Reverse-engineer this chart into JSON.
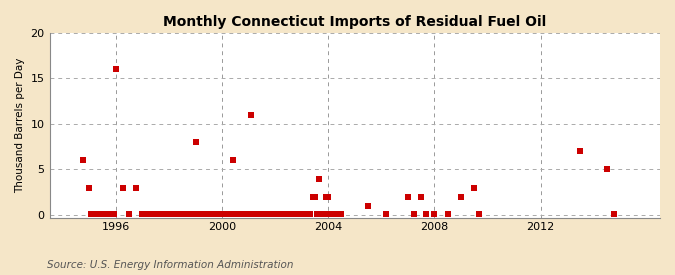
{
  "title": "Monthly Connecticut Imports of Residual Fuel Oil",
  "ylabel": "Thousand Barrels per Day",
  "source": "Source: U.S. Energy Information Administration",
  "background_color": "#f5e6c8",
  "plot_background_color": "#ffffff",
  "point_color": "#cc0000",
  "marker_size": 16,
  "ylim": [
    -0.3,
    20
  ],
  "yticks": [
    0,
    5,
    10,
    15,
    20
  ],
  "xlim": [
    1993.5,
    2016.5
  ],
  "xticks": [
    1996,
    2000,
    2004,
    2008,
    2012
  ],
  "grid_color": "#aaaaaa",
  "vgrid_color": "#999999",
  "data_points": [
    [
      1994.75,
      6.0
    ],
    [
      1995.0,
      3.0
    ],
    [
      1995.08,
      0.05
    ],
    [
      1995.17,
      0.05
    ],
    [
      1995.25,
      0.05
    ],
    [
      1995.33,
      0.05
    ],
    [
      1995.42,
      0.05
    ],
    [
      1995.5,
      0.05
    ],
    [
      1995.58,
      0.05
    ],
    [
      1995.67,
      0.05
    ],
    [
      1995.75,
      0.05
    ],
    [
      1995.83,
      0.05
    ],
    [
      1995.92,
      0.05
    ],
    [
      1996.0,
      16.0
    ],
    [
      1996.25,
      3.0
    ],
    [
      1996.5,
      0.05
    ],
    [
      1996.75,
      3.0
    ],
    [
      1997.0,
      0.05
    ],
    [
      1997.08,
      0.05
    ],
    [
      1997.17,
      0.05
    ],
    [
      1997.25,
      0.05
    ],
    [
      1997.33,
      0.05
    ],
    [
      1997.42,
      0.05
    ],
    [
      1997.5,
      0.05
    ],
    [
      1997.58,
      0.05
    ],
    [
      1997.67,
      0.05
    ],
    [
      1997.75,
      0.05
    ],
    [
      1997.83,
      0.05
    ],
    [
      1997.92,
      0.05
    ],
    [
      1998.0,
      0.05
    ],
    [
      1998.08,
      0.05
    ],
    [
      1998.17,
      0.05
    ],
    [
      1998.25,
      0.05
    ],
    [
      1998.33,
      0.05
    ],
    [
      1998.42,
      0.05
    ],
    [
      1998.5,
      0.05
    ],
    [
      1998.58,
      0.05
    ],
    [
      1998.67,
      0.05
    ],
    [
      1998.75,
      0.05
    ],
    [
      1998.83,
      0.05
    ],
    [
      1998.92,
      0.05
    ],
    [
      1999.0,
      8.0
    ],
    [
      1999.08,
      0.05
    ],
    [
      1999.17,
      0.05
    ],
    [
      1999.25,
      0.05
    ],
    [
      1999.33,
      0.05
    ],
    [
      1999.42,
      0.05
    ],
    [
      1999.5,
      0.05
    ],
    [
      1999.58,
      0.05
    ],
    [
      1999.67,
      0.05
    ],
    [
      1999.75,
      0.05
    ],
    [
      1999.83,
      0.05
    ],
    [
      1999.92,
      0.05
    ],
    [
      2000.0,
      0.05
    ],
    [
      2000.08,
      0.05
    ],
    [
      2000.17,
      0.05
    ],
    [
      2000.25,
      0.05
    ],
    [
      2000.33,
      0.05
    ],
    [
      2000.42,
      6.0
    ],
    [
      2000.5,
      0.05
    ],
    [
      2000.58,
      0.05
    ],
    [
      2000.67,
      0.05
    ],
    [
      2000.75,
      0.05
    ],
    [
      2000.83,
      0.05
    ],
    [
      2000.92,
      0.05
    ],
    [
      2001.0,
      0.05
    ],
    [
      2001.08,
      11.0
    ],
    [
      2001.17,
      0.05
    ],
    [
      2001.25,
      0.05
    ],
    [
      2001.33,
      0.05
    ],
    [
      2001.42,
      0.05
    ],
    [
      2001.5,
      0.05
    ],
    [
      2001.58,
      0.05
    ],
    [
      2001.67,
      0.05
    ],
    [
      2001.75,
      0.05
    ],
    [
      2001.83,
      0.05
    ],
    [
      2001.92,
      0.05
    ],
    [
      2002.0,
      0.05
    ],
    [
      2002.08,
      0.05
    ],
    [
      2002.17,
      0.05
    ],
    [
      2002.25,
      0.05
    ],
    [
      2002.33,
      0.05
    ],
    [
      2002.42,
      0.05
    ],
    [
      2002.5,
      0.05
    ],
    [
      2002.58,
      0.05
    ],
    [
      2002.67,
      0.05
    ],
    [
      2002.75,
      0.05
    ],
    [
      2002.83,
      0.05
    ],
    [
      2002.92,
      0.05
    ],
    [
      2003.0,
      0.05
    ],
    [
      2003.08,
      0.05
    ],
    [
      2003.17,
      0.05
    ],
    [
      2003.25,
      0.05
    ],
    [
      2003.33,
      0.05
    ],
    [
      2003.42,
      2.0
    ],
    [
      2003.5,
      2.0
    ],
    [
      2003.58,
      0.05
    ],
    [
      2003.67,
      4.0
    ],
    [
      2003.75,
      0.05
    ],
    [
      2003.83,
      0.05
    ],
    [
      2003.92,
      2.0
    ],
    [
      2004.0,
      2.0
    ],
    [
      2004.08,
      0.05
    ],
    [
      2004.17,
      0.05
    ],
    [
      2004.25,
      0.05
    ],
    [
      2004.33,
      0.05
    ],
    [
      2004.42,
      0.05
    ],
    [
      2004.5,
      0.05
    ],
    [
      2005.5,
      1.0
    ],
    [
      2006.17,
      0.05
    ],
    [
      2007.0,
      2.0
    ],
    [
      2007.25,
      0.05
    ],
    [
      2007.5,
      2.0
    ],
    [
      2007.67,
      0.05
    ],
    [
      2008.0,
      0.05
    ],
    [
      2008.5,
      0.05
    ],
    [
      2009.0,
      2.0
    ],
    [
      2009.5,
      3.0
    ],
    [
      2009.67,
      0.05
    ],
    [
      2013.5,
      7.0
    ],
    [
      2014.5,
      5.0
    ],
    [
      2014.75,
      0.05
    ]
  ]
}
